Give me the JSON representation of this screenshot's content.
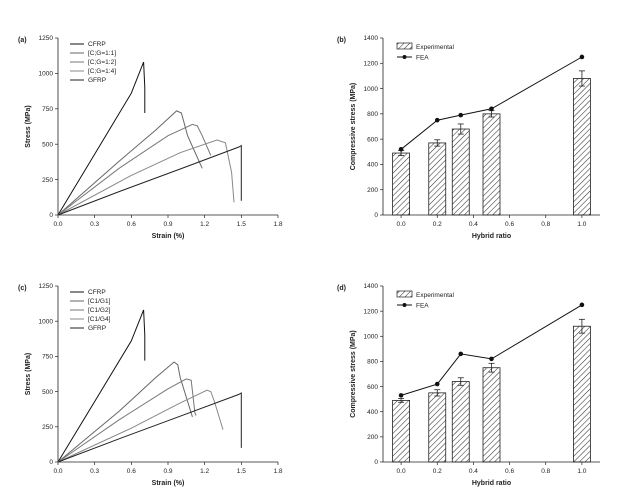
{
  "chart_data": [
    {
      "type": "line",
      "panel_label": "(a)",
      "xlabel": "Strain (%)",
      "ylabel": "Stress (MPa)",
      "xlim": [
        0,
        1.8
      ],
      "ylim": [
        0,
        1250
      ],
      "xticks": [
        "0.0",
        "0.3",
        "0.6",
        "0.9",
        "1.2",
        "1.5",
        "1.8"
      ],
      "yticks": [
        "0",
        "250",
        "500",
        "750",
        "1000",
        "1250"
      ],
      "legend": [
        "CFRP",
        "[C;G=1:1]",
        "[C;G=1:2]",
        "[C;G=1:4]",
        "GFRP"
      ],
      "series": [
        {
          "name": "CFRP",
          "color": "#111111",
          "x": [
            0,
            0.3,
            0.6,
            0.7,
            0.71,
            0.71
          ],
          "y": [
            0,
            430,
            860,
            1080,
            900,
            720
          ]
        },
        {
          "name": "[C;G=1:1]",
          "color": "#666666",
          "x": [
            0,
            0.5,
            0.8,
            0.97,
            1.01,
            1.06,
            1.18
          ],
          "y": [
            0,
            380,
            600,
            735,
            720,
            560,
            330
          ]
        },
        {
          "name": "[C;G=1:2]",
          "color": "#777777",
          "x": [
            0,
            0.5,
            0.9,
            1.1,
            1.14,
            1.18,
            1.25
          ],
          "y": [
            0,
            330,
            560,
            640,
            630,
            560,
            420
          ]
        },
        {
          "name": "[C;G=1:4]",
          "color": "#888888",
          "x": [
            0,
            0.6,
            1.0,
            1.3,
            1.37,
            1.42,
            1.44
          ],
          "y": [
            0,
            280,
            440,
            530,
            510,
            300,
            90
          ]
        },
        {
          "name": "GFRP",
          "color": "#222222",
          "x": [
            0,
            0.5,
            1.0,
            1.48,
            1.5,
            1.5
          ],
          "y": [
            0,
            165,
            325,
            480,
            490,
            100
          ]
        }
      ]
    },
    {
      "type": "bar",
      "panel_label": "(b)",
      "xlabel": "Hybrid ratio",
      "ylabel": "Compressive stress (MPa)",
      "xlim": [
        -0.1,
        1.1
      ],
      "ylim": [
        0,
        1400
      ],
      "xticks": [
        "0.0",
        "0.2",
        "0.4",
        "0.6",
        "0.8",
        "1.0"
      ],
      "yticks": [
        "0",
        "200",
        "400",
        "600",
        "800",
        "1000",
        "1200",
        "1400"
      ],
      "legend": [
        "Experimental",
        "FEA"
      ],
      "bars": {
        "name": "Experimental",
        "x": [
          0,
          0.2,
          0.33,
          0.5,
          1.0
        ],
        "values": [
          490,
          570,
          680,
          800,
          1080
        ],
        "errors": [
          20,
          25,
          40,
          25,
          60
        ]
      },
      "line": {
        "name": "FEA",
        "x": [
          0,
          0.2,
          0.33,
          0.5,
          1.0
        ],
        "values": [
          520,
          750,
          790,
          840,
          1250
        ]
      }
    },
    {
      "type": "line",
      "panel_label": "(c)",
      "xlabel": "Strain (%)",
      "ylabel": "Stress (MPa)",
      "xlim": [
        0,
        1.8
      ],
      "ylim": [
        0,
        1250
      ],
      "xticks": [
        "0.0",
        "0.3",
        "0.6",
        "0.9",
        "1.2",
        "1.5",
        "1.8"
      ],
      "yticks": [
        "0",
        "250",
        "500",
        "750",
        "1000",
        "1250"
      ],
      "legend": [
        "CFRP",
        "[C1/G1]",
        "[C1/G2]",
        "[C1/G4]",
        "GFRP"
      ],
      "series": [
        {
          "name": "CFRP",
          "color": "#111111",
          "x": [
            0,
            0.3,
            0.6,
            0.7,
            0.71,
            0.71
          ],
          "y": [
            0,
            430,
            860,
            1080,
            900,
            720
          ]
        },
        {
          "name": "[C1/G1]",
          "color": "#666666",
          "x": [
            0,
            0.5,
            0.8,
            0.95,
            0.98,
            1.0,
            1.1
          ],
          "y": [
            0,
            360,
            600,
            710,
            690,
            600,
            320
          ]
        },
        {
          "name": "[C1/G2]",
          "color": "#777777",
          "x": [
            0,
            0.5,
            0.9,
            1.05,
            1.09,
            1.12,
            1.13
          ],
          "y": [
            0,
            300,
            520,
            590,
            580,
            350,
            330
          ]
        },
        {
          "name": "[C1/G4]",
          "color": "#888888",
          "x": [
            0,
            0.6,
            1.0,
            1.22,
            1.25,
            1.28,
            1.35
          ],
          "y": [
            0,
            240,
            420,
            510,
            500,
            430,
            230
          ]
        },
        {
          "name": "GFRP",
          "color": "#222222",
          "x": [
            0,
            0.5,
            1.0,
            1.48,
            1.5,
            1.5
          ],
          "y": [
            0,
            165,
            325,
            480,
            490,
            100
          ]
        }
      ]
    },
    {
      "type": "bar",
      "panel_label": "(d)",
      "xlabel": "Hybrid ratio",
      "ylabel": "Compressive stress (MPa)",
      "xlim": [
        -0.1,
        1.1
      ],
      "ylim": [
        0,
        1400
      ],
      "xticks": [
        "0.0",
        "0.2",
        "0.4",
        "0.6",
        "0.8",
        "1.0"
      ],
      "yticks": [
        "0",
        "200",
        "400",
        "600",
        "800",
        "1000",
        "1200",
        "1400"
      ],
      "legend": [
        "Experimental",
        "FEA"
      ],
      "bars": {
        "name": "Experimental",
        "x": [
          0,
          0.2,
          0.33,
          0.5,
          1.0
        ],
        "values": [
          490,
          550,
          640,
          750,
          1080
        ],
        "errors": [
          15,
          25,
          30,
          35,
          55
        ]
      },
      "line": {
        "name": "FEA",
        "x": [
          0,
          0.2,
          0.33,
          0.5,
          1.0
        ],
        "values": [
          530,
          620,
          860,
          820,
          1250
        ]
      }
    }
  ]
}
